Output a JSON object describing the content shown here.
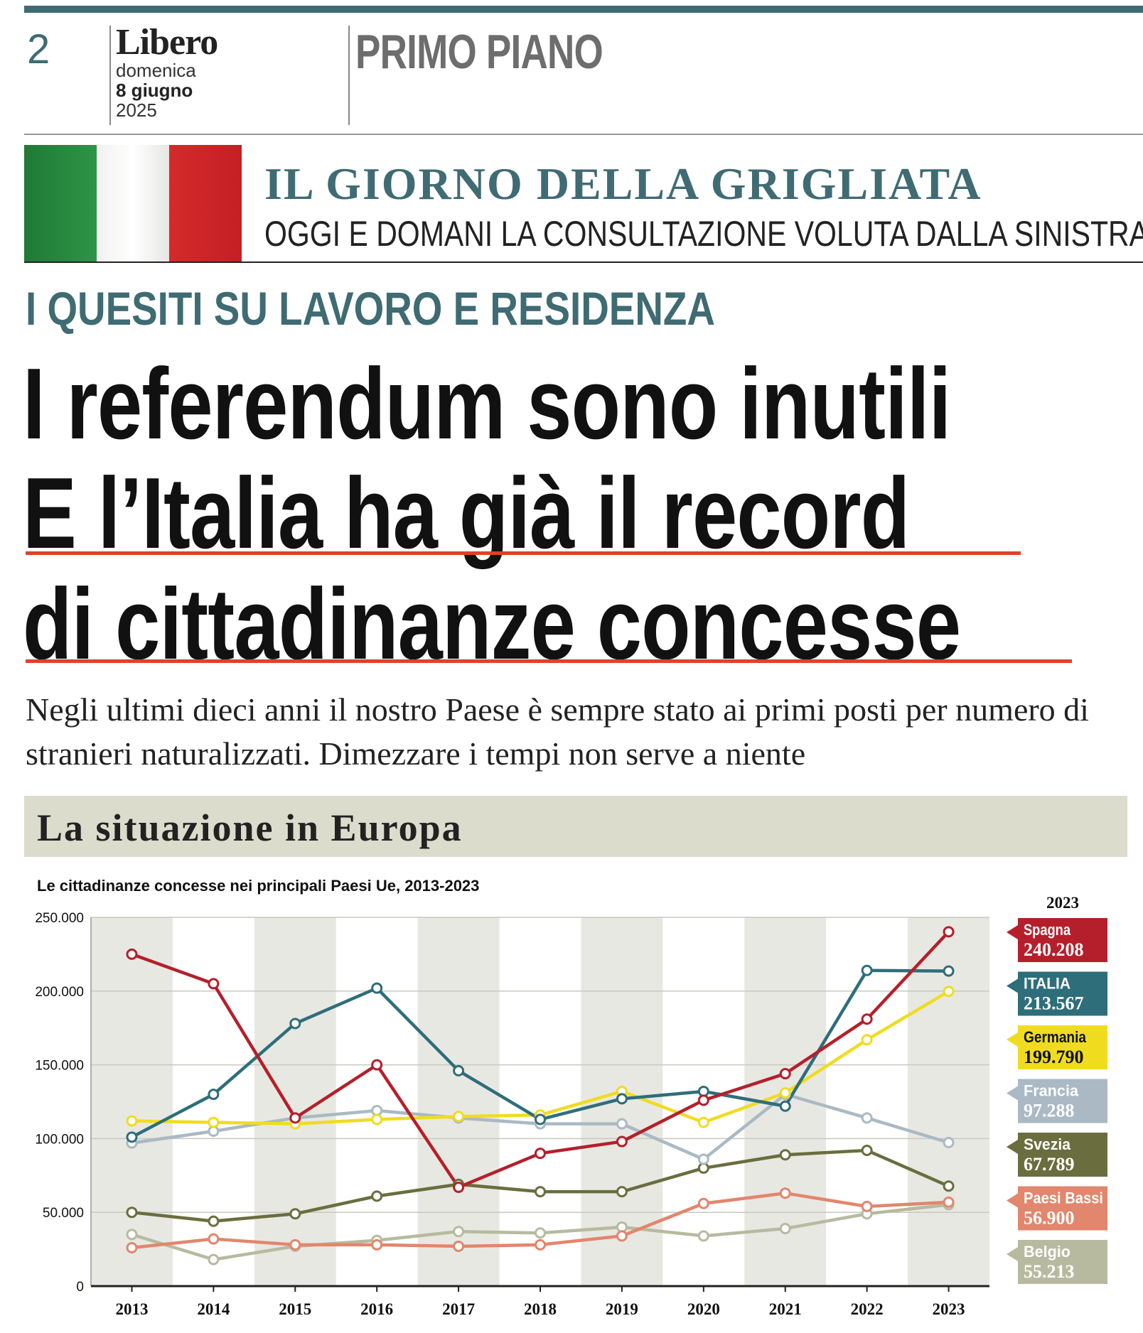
{
  "masthead": {
    "page_number": "2",
    "logo": "Libero",
    "day": "domenica",
    "date": "8 giugno",
    "year": "2025",
    "section": "PRIMO PIANO"
  },
  "kicker": {
    "title": "IL GIORNO DELLA GRIGLIATA",
    "subtitle": "OGGI E DOMANI LA CONSULTAZIONE VOLUTA DALLA SINISTRA"
  },
  "article": {
    "overline": "I QUESITI SU LAVORO E RESIDENZA",
    "headline_lines": [
      "I referendum sono inutili",
      "E l’Italia ha già il record",
      "di cittadinanze concesse"
    ],
    "summary": "Negli ultimi dieci anni il nostro Paese è sempre stato ai primi posti per numero di stranieri naturalizzati. Dimezzare i tempi non serve a niente"
  },
  "infobox": {
    "title": "La situazione in Europa"
  },
  "chart_data": {
    "type": "line",
    "title": "Le cittadinanze concesse nei principali Paesi Ue, 2013-2023",
    "x": [
      2013,
      2014,
      2015,
      2016,
      2017,
      2018,
      2019,
      2020,
      2021,
      2022,
      2023
    ],
    "ylim": [
      0,
      250000
    ],
    "yticks": [
      "0",
      "50.000",
      "100.000",
      "150.000",
      "200.000",
      "250.000"
    ],
    "ytick_values": [
      0,
      50000,
      100000,
      150000,
      200000,
      250000
    ],
    "grid": true,
    "legend_position": "right",
    "legend_header": "2023",
    "series": [
      {
        "name": "Spagna",
        "label_2023": "240.208",
        "color": "#b51f2b",
        "values": [
          225000,
          205000,
          114000,
          150000,
          67000,
          90000,
          98000,
          126000,
          144000,
          181000,
          240208
        ]
      },
      {
        "name": "ITALIA",
        "label_2023": "213.567",
        "color": "#2e6e7a",
        "values": [
          101000,
          130000,
          178000,
          202000,
          146000,
          113000,
          127000,
          132000,
          122000,
          214000,
          213567
        ]
      },
      {
        "name": "Germania",
        "label_2023": "199.790",
        "color": "#f0dc1f",
        "values": [
          112000,
          111000,
          110000,
          113000,
          115000,
          116000,
          132000,
          111000,
          131000,
          167000,
          199790
        ]
      },
      {
        "name": "Francia",
        "label_2023": "97.288",
        "color": "#aab9c4",
        "values": [
          97000,
          105000,
          114000,
          119000,
          114000,
          110000,
          110000,
          86000,
          130000,
          114000,
          97288
        ]
      },
      {
        "name": "Svezia",
        "label_2023": "67.789",
        "color": "#6a6e3e",
        "values": [
          50000,
          44000,
          49000,
          61000,
          69000,
          64000,
          64000,
          80000,
          89000,
          92000,
          67789
        ]
      },
      {
        "name": "Paesi Bassi",
        "label_2023": "56.900",
        "color": "#e2866d",
        "values": [
          26000,
          32000,
          28000,
          28000,
          27000,
          28000,
          34000,
          56000,
          63000,
          54000,
          56900
        ]
      },
      {
        "name": "Belgio",
        "label_2023": "55.213",
        "color": "#b8baa0",
        "values": [
          35000,
          18000,
          27000,
          31000,
          37000,
          36000,
          40000,
          34000,
          39000,
          49000,
          55213
        ]
      }
    ]
  }
}
